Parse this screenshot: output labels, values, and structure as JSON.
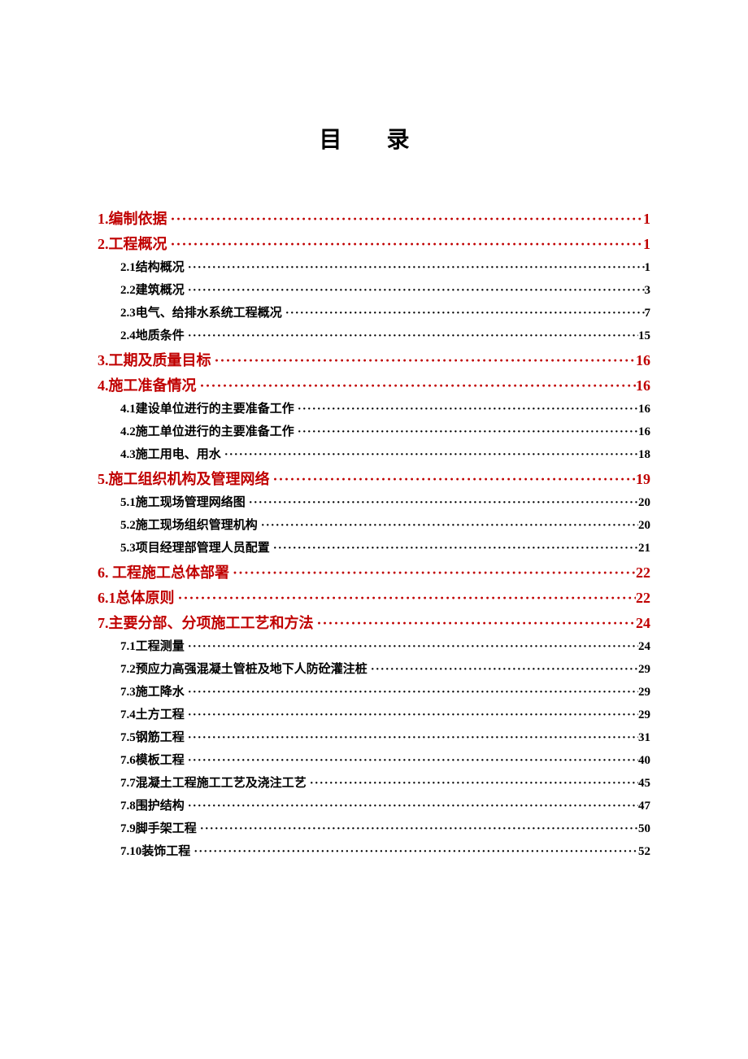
{
  "title": "目 录",
  "colors": {
    "level1": "#c00000",
    "level2": "#000000",
    "background": "#ffffff"
  },
  "typography": {
    "title_fontsize": 28,
    "level1_fontsize": 18,
    "level2_fontsize": 15,
    "font_family": "SimSun"
  },
  "toc": [
    {
      "level": 1,
      "label": "1.编制依据",
      "page": "1"
    },
    {
      "level": 1,
      "label": "2.工程概况",
      "page": "1"
    },
    {
      "level": 2,
      "label": "2.1结构概况",
      "page": "1"
    },
    {
      "level": 2,
      "label": "2.2建筑概况",
      "page": "3"
    },
    {
      "level": 2,
      "label": "2.3电气、给排水系统工程概况",
      "page": "7"
    },
    {
      "level": 2,
      "label": "2.4地质条件",
      "page": "15"
    },
    {
      "level": 1,
      "label": "3.工期及质量目标",
      "page": "16"
    },
    {
      "level": 1,
      "label": "4.施工准备情况",
      "page": "16"
    },
    {
      "level": 2,
      "label": "4.1建设单位进行的主要准备工作",
      "page": "16"
    },
    {
      "level": 2,
      "label": "4.2施工单位进行的主要准备工作",
      "page": "16"
    },
    {
      "level": 2,
      "label": "4.3施工用电、用水",
      "page": "18"
    },
    {
      "level": 1,
      "label": "5.施工组织机构及管理网络",
      "page": "19"
    },
    {
      "level": 2,
      "label": "5.1施工现场管理网络图",
      "page": "20"
    },
    {
      "level": 2,
      "label": "5.2施工现场组织管理机构",
      "page": "20"
    },
    {
      "level": 2,
      "label": "5.3项目经理部管理人员配置",
      "page": "21"
    },
    {
      "level": 1,
      "label": "6. 工程施工总体部署",
      "page": "22"
    },
    {
      "level": 1,
      "label": "6.1总体原则",
      "page": "22"
    },
    {
      "level": 1,
      "label": "7.主要分部、分项施工工艺和方法",
      "page": "24"
    },
    {
      "level": 2,
      "label": "7.1工程测量",
      "page": "24"
    },
    {
      "level": 2,
      "label": "7.2预应力高强混凝土管桩及地下人防砼灌注桩",
      "page": "29"
    },
    {
      "level": 2,
      "label": "7.3施工降水",
      "page": "29"
    },
    {
      "level": 2,
      "label": "7.4土方工程",
      "page": "29"
    },
    {
      "level": 2,
      "label": "7.5钢筋工程",
      "page": "31"
    },
    {
      "level": 2,
      "label": "7.6模板工程",
      "page": "40"
    },
    {
      "level": 2,
      "label": "7.7混凝土工程施工工艺及浇注工艺",
      "page": "45"
    },
    {
      "level": 2,
      "label": "7.8围护结构",
      "page": "47"
    },
    {
      "level": 2,
      "label": "7.9脚手架工程",
      "page": "50"
    },
    {
      "level": 2,
      "label": "7.10装饰工程",
      "page": "52"
    }
  ]
}
